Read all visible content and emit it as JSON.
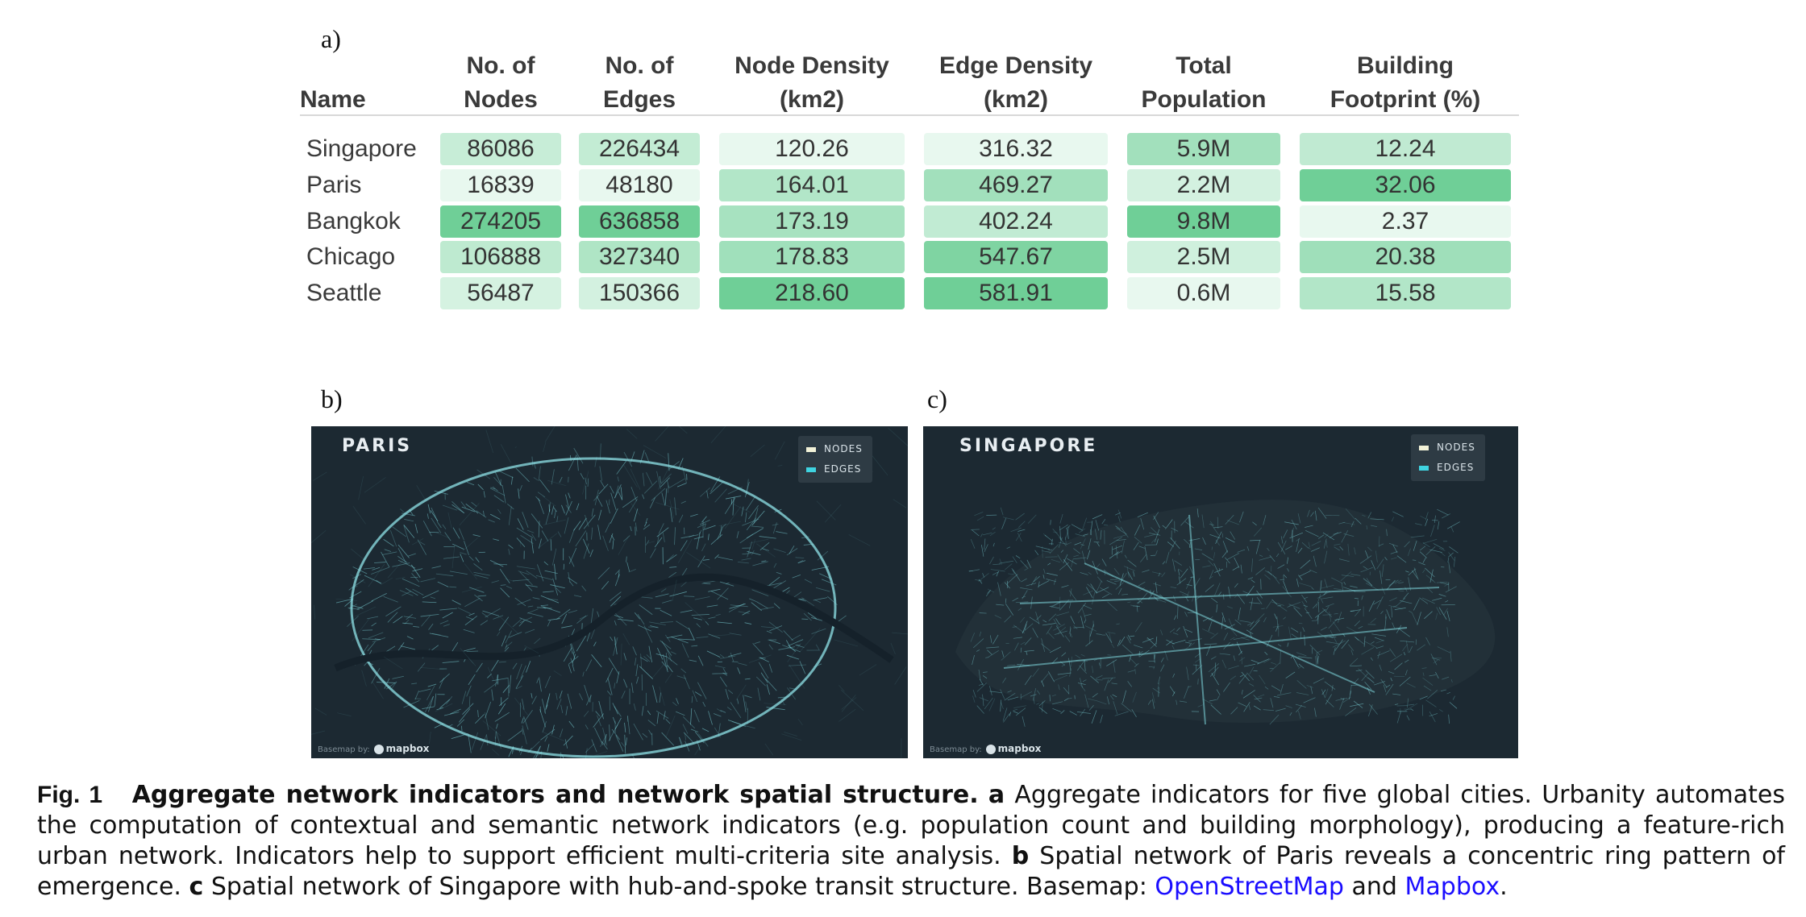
{
  "panels": {
    "a": "a)",
    "b": "b)",
    "c": "c)"
  },
  "table": {
    "headers": {
      "name": "Name",
      "nodes": [
        "No. of",
        "Nodes"
      ],
      "edges": [
        "No. of",
        "Edges"
      ],
      "node_density": [
        "Node Density",
        "(km2)"
      ],
      "edge_density": [
        "Edge Density",
        "(km2)"
      ],
      "population": [
        "Total",
        "Population"
      ],
      "footprint": [
        "Building",
        "Footprint (%)"
      ]
    },
    "rows": [
      {
        "name": "Singapore",
        "nodes": "86086",
        "edges": "226434",
        "node_density": "120.26",
        "edge_density": "316.32",
        "population": "5.9M",
        "footprint": "12.24"
      },
      {
        "name": "Paris",
        "nodes": "16839",
        "edges": "48180",
        "node_density": "164.01",
        "edge_density": "469.27",
        "population": "2.2M",
        "footprint": "32.06"
      },
      {
        "name": "Bangkok",
        "nodes": "274205",
        "edges": "636858",
        "node_density": "173.19",
        "edge_density": "402.24",
        "population": "9.8M",
        "footprint": "2.37"
      },
      {
        "name": "Chicago",
        "nodes": "106888",
        "edges": "327340",
        "node_density": "178.83",
        "edge_density": "547.67",
        "population": "2.5M",
        "footprint": "20.38"
      },
      {
        "name": "Seattle",
        "nodes": "56487",
        "edges": "150366",
        "node_density": "218.60",
        "edge_density": "581.91",
        "population": "0.6M",
        "footprint": "15.58"
      }
    ],
    "colors": {
      "low": "#e8f8ef",
      "high": "#6fcf97"
    }
  },
  "maps": {
    "paris": {
      "title": "PARIS"
    },
    "singapore": {
      "title": "SINGAPORE"
    },
    "legend": {
      "nodes": "NODES",
      "edges": "EDGES",
      "nodes_color": "#f2f2d8",
      "edges_color": "#3fd3e0"
    },
    "attribution": {
      "prefix": "Basemap by:",
      "brand": "mapbox"
    }
  },
  "caption": {
    "fig": "Fig. 1",
    "title": "Aggregate network indicators and network spatial structure.",
    "a_label": "a",
    "a_text": "Aggregate indicators for five global cities. Urbanity automates the computation of contextual and semantic network indicators (e.g. population count and building morphology), producing a feature-rich urban network. Indicators help to support efficient multi-criteria site analysis.",
    "b_label": "b",
    "b_text": "Spatial network of Paris reveals a concentric ring pattern of emergence.",
    "c_label": "c",
    "c_text": "Spatial network of Singapore with hub-and-spoke transit structure. Basemap:",
    "link1": "OpenStreetMap",
    "and": "and",
    "link2": "Mapbox",
    "end": "."
  }
}
